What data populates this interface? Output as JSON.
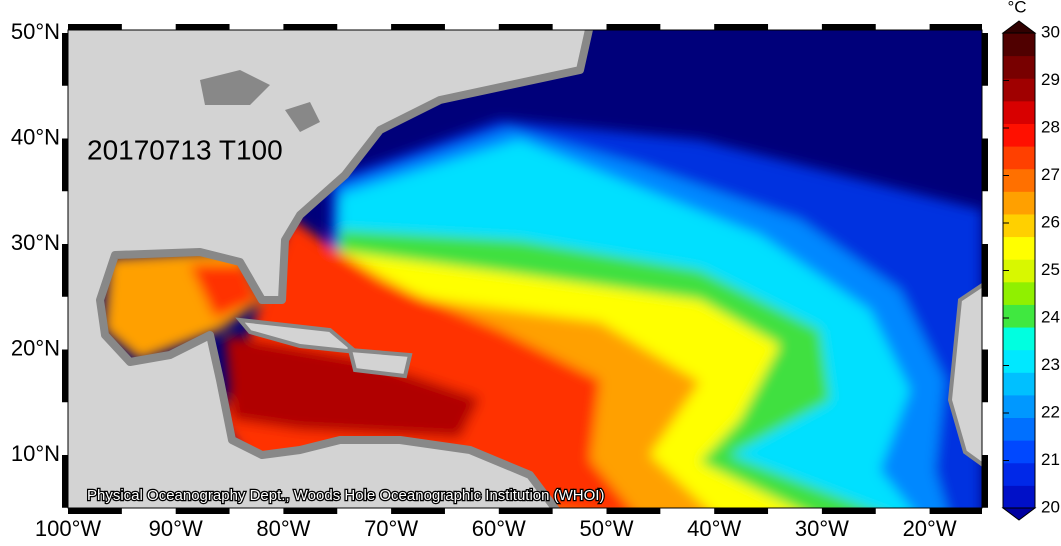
{
  "map": {
    "label": "20170713 T100",
    "credit": "Physical Oceanography Dept., Woods Hole Oceanographic Institution (WHOI)",
    "lat_labels": [
      "50°N",
      "40°N",
      "30°N",
      "20°N",
      "10°N"
    ],
    "lon_labels": [
      "100°W",
      "90°W",
      "80°W",
      "70°W",
      "60°W",
      "50°W",
      "40°W",
      "30°W",
      "20°W"
    ],
    "colorbar": {
      "unit": "°C",
      "ticks": [
        20,
        21,
        22,
        23,
        24,
        25,
        26,
        27,
        28,
        29,
        30
      ],
      "colors": [
        "#0000a0",
        "#0010c8",
        "#0028e8",
        "#0048ff",
        "#0070ff",
        "#0098ff",
        "#00c0ff",
        "#00e8ff",
        "#00ffe0",
        "#40e840",
        "#90f000",
        "#d8f800",
        "#ffff00",
        "#ffd000",
        "#ffa000",
        "#ff7000",
        "#ff4000",
        "#ff1000",
        "#d80000",
        "#a00000",
        "#780000",
        "#500000",
        "#300000"
      ]
    }
  }
}
